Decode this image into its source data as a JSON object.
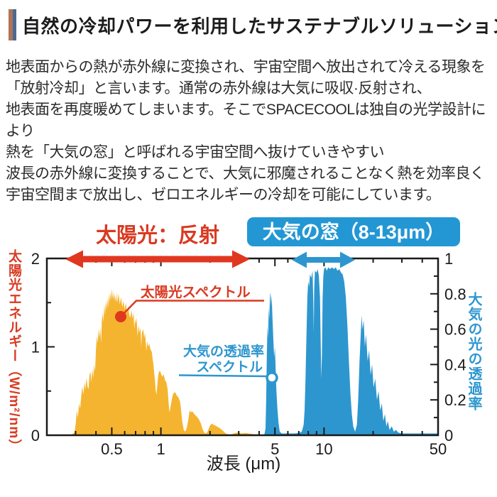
{
  "header": {
    "title": "自然の冷却パワーを利用したサステナブルソリューション",
    "accent_bar_colors": [
      "#b27257",
      "#4a6b94"
    ]
  },
  "body": {
    "lines": [
      "地表面からの熱が赤外線に変換され、宇宙空間へ放出されて冷える現象を",
      "「放射冷却」と言います。通常の赤外線は大気に吸収·反射され、",
      "地表面を再度暖めてしまいます。そこでSPACECOOLは独自の光学設計により",
      "熱を「大気の窓」と呼ばれる宇宙空間へ抜けていきやすい",
      "波長の赤外線に変換することで、大気に邪魔されることなく熱を効率良く",
      "宇宙空間まで放出し、ゼロエネルギーの冷却を可能にしています。"
    ]
  },
  "chart_data": {
    "type": "area",
    "x_scale": "log",
    "x_range": [
      0.2,
      50
    ],
    "xlabel": "波長 (μm)",
    "x_major_ticks": [
      0.5,
      1,
      5,
      10,
      50
    ],
    "x_major_labels": [
      "0.5",
      "1",
      "5",
      "10",
      "50"
    ],
    "x_minor_ticks": [
      0.3,
      0.4,
      0.6,
      0.7,
      0.8,
      0.9,
      2,
      3,
      4,
      6,
      7,
      8,
      9,
      20,
      30,
      40
    ],
    "left_axis": {
      "label": "太陽光エネルギー（W/m²/nm）",
      "color": "#d93a22",
      "min": 0,
      "max": 2,
      "major_ticks": [
        0,
        1,
        2
      ],
      "labels": [
        "0",
        "1",
        "2"
      ],
      "minor_ticks": [
        0.5,
        1.5
      ]
    },
    "right_axis": {
      "label": "大気の光の透過率",
      "color": "#2d96cf",
      "min": 0,
      "max": 1,
      "major_ticks": [
        0,
        0.2,
        0.4,
        0.6,
        0.8,
        1
      ],
      "labels": [
        "0",
        "0.2",
        "0.4",
        "0.6",
        "0.8",
        "1"
      ],
      "minor_ticks": [
        0.1,
        0.3,
        0.5,
        0.7,
        0.9
      ]
    },
    "colors": {
      "red": "#d93a22",
      "arrow_red": "#e0371f",
      "orange": "#f5b42f",
      "blue": "#2d96cf",
      "badge_bg": "#2397d3",
      "axis_black": "#1a1a1a"
    },
    "header_annotations": {
      "sun_reflect_label": "太陽光：反射",
      "window_badge": "大気の窓（8-13μm）",
      "badge_text_color": "#ffffff",
      "window_range_um": [
        8,
        13
      ]
    },
    "series": [
      {
        "name": "太陽光スペクトル",
        "axis": "left",
        "color": "#f5b42f",
        "points": [
          [
            0.28,
            0
          ],
          [
            0.295,
            0.03
          ],
          [
            0.3,
            0.12
          ],
          [
            0.305,
            0.28
          ],
          [
            0.31,
            0.2
          ],
          [
            0.315,
            0.36
          ],
          [
            0.32,
            0.3
          ],
          [
            0.325,
            0.45
          ],
          [
            0.33,
            0.55
          ],
          [
            0.335,
            0.46
          ],
          [
            0.34,
            0.6
          ],
          [
            0.345,
            0.52
          ],
          [
            0.35,
            0.65
          ],
          [
            0.355,
            0.55
          ],
          [
            0.36,
            0.52
          ],
          [
            0.365,
            0.68
          ],
          [
            0.37,
            0.72
          ],
          [
            0.375,
            0.6
          ],
          [
            0.38,
            0.75
          ],
          [
            0.385,
            0.65
          ],
          [
            0.39,
            0.8
          ],
          [
            0.395,
            0.72
          ],
          [
            0.4,
            0.98
          ],
          [
            0.405,
            1.12
          ],
          [
            0.41,
            1.04
          ],
          [
            0.415,
            1.2
          ],
          [
            0.42,
            1.1
          ],
          [
            0.425,
            1.22
          ],
          [
            0.43,
            1.04
          ],
          [
            0.435,
            1.3
          ],
          [
            0.44,
            1.38
          ],
          [
            0.445,
            1.28
          ],
          [
            0.45,
            1.48
          ],
          [
            0.455,
            1.36
          ],
          [
            0.46,
            1.52
          ],
          [
            0.465,
            1.42
          ],
          [
            0.47,
            1.55
          ],
          [
            0.475,
            1.44
          ],
          [
            0.48,
            1.6
          ],
          [
            0.485,
            1.5
          ],
          [
            0.49,
            1.62
          ],
          [
            0.495,
            1.53
          ],
          [
            0.5,
            1.66
          ],
          [
            0.505,
            1.54
          ],
          [
            0.51,
            1.63
          ],
          [
            0.515,
            1.52
          ],
          [
            0.52,
            1.6
          ],
          [
            0.53,
            1.5
          ],
          [
            0.535,
            1.62
          ],
          [
            0.54,
            1.5
          ],
          [
            0.55,
            1.6
          ],
          [
            0.56,
            1.48
          ],
          [
            0.57,
            1.56
          ],
          [
            0.58,
            1.45
          ],
          [
            0.59,
            1.52
          ],
          [
            0.6,
            1.42
          ],
          [
            0.61,
            1.5
          ],
          [
            0.62,
            1.38
          ],
          [
            0.63,
            1.46
          ],
          [
            0.64,
            1.36
          ],
          [
            0.65,
            1.33
          ],
          [
            0.66,
            1.42
          ],
          [
            0.67,
            1.32
          ],
          [
            0.68,
            1.39
          ],
          [
            0.687,
            1.2
          ],
          [
            0.695,
            1.32
          ],
          [
            0.7,
            1.26
          ],
          [
            0.71,
            1.33
          ],
          [
            0.715,
            1.22
          ],
          [
            0.72,
            1.12
          ],
          [
            0.73,
            1.24
          ],
          [
            0.74,
            1.16
          ],
          [
            0.75,
            1.22
          ],
          [
            0.758,
            1.0
          ],
          [
            0.765,
            1.16
          ],
          [
            0.78,
            1.2
          ],
          [
            0.79,
            1.1
          ],
          [
            0.8,
            1.16
          ],
          [
            0.81,
            1.02
          ],
          [
            0.815,
            0.95
          ],
          [
            0.825,
            1.06
          ],
          [
            0.84,
            1.0
          ],
          [
            0.85,
            1.04
          ],
          [
            0.86,
            0.98
          ],
          [
            0.88,
            0.94
          ],
          [
            0.89,
            0.86
          ],
          [
            0.9,
            0.8
          ],
          [
            0.91,
            0.7
          ],
          [
            0.92,
            0.62
          ],
          [
            0.93,
            0.5
          ],
          [
            0.94,
            0.46
          ],
          [
            0.95,
            0.56
          ],
          [
            0.96,
            0.65
          ],
          [
            0.97,
            0.71
          ],
          [
            0.985,
            0.73
          ],
          [
            1.0,
            0.7
          ],
          [
            1.02,
            0.66
          ],
          [
            1.04,
            0.69
          ],
          [
            1.06,
            0.62
          ],
          [
            1.08,
            0.6
          ],
          [
            1.1,
            0.52
          ],
          [
            1.11,
            0.42
          ],
          [
            1.12,
            0.32
          ],
          [
            1.13,
            0.26
          ],
          [
            1.15,
            0.34
          ],
          [
            1.17,
            0.42
          ],
          [
            1.19,
            0.47
          ],
          [
            1.22,
            0.49
          ],
          [
            1.25,
            0.45
          ],
          [
            1.28,
            0.43
          ],
          [
            1.31,
            0.38
          ],
          [
            1.33,
            0.28
          ],
          [
            1.35,
            0.16
          ],
          [
            1.38,
            0.06
          ],
          [
            1.41,
            0.04
          ],
          [
            1.44,
            0.08
          ],
          [
            1.47,
            0.17
          ],
          [
            1.5,
            0.28
          ],
          [
            1.53,
            0.26
          ],
          [
            1.56,
            0.27
          ],
          [
            1.6,
            0.24
          ],
          [
            1.64,
            0.22
          ],
          [
            1.68,
            0.2
          ],
          [
            1.72,
            0.17
          ],
          [
            1.76,
            0.13
          ],
          [
            1.8,
            0.07
          ],
          [
            1.84,
            0.03
          ],
          [
            1.88,
            0.02
          ],
          [
            1.92,
            0.03
          ],
          [
            1.96,
            0.07
          ],
          [
            2.0,
            0.11
          ],
          [
            2.05,
            0.13
          ],
          [
            2.1,
            0.12
          ],
          [
            2.2,
            0.1
          ],
          [
            2.3,
            0.08
          ],
          [
            2.4,
            0.05
          ],
          [
            2.5,
            0.02
          ],
          [
            2.6,
            0.01
          ],
          [
            2.7,
            0.01
          ],
          [
            2.85,
            0.025
          ],
          [
            3.0,
            0.03
          ],
          [
            3.1,
            0.02
          ],
          [
            3.3,
            0.025
          ],
          [
            3.5,
            0.018
          ],
          [
            3.7,
            0.012
          ],
          [
            4.0,
            0.01
          ],
          [
            4.3,
            0.008
          ],
          [
            4.7,
            0.005
          ],
          [
            5.0,
            0.0
          ]
        ]
      },
      {
        "name": "大気の透過率スペクトル",
        "axis": "right",
        "color": "#2d96cf",
        "points": [
          [
            4.3,
            0
          ],
          [
            4.38,
            0.04
          ],
          [
            4.42,
            0.2
          ],
          [
            4.46,
            0.45
          ],
          [
            4.5,
            0.62
          ],
          [
            4.54,
            0.55
          ],
          [
            4.58,
            0.72
          ],
          [
            4.62,
            0.66
          ],
          [
            4.66,
            0.78
          ],
          [
            4.7,
            0.81
          ],
          [
            4.74,
            0.73
          ],
          [
            4.78,
            0.79
          ],
          [
            4.82,
            0.68
          ],
          [
            4.86,
            0.6
          ],
          [
            4.9,
            0.52
          ],
          [
            4.95,
            0.44
          ],
          [
            5.0,
            0.5
          ],
          [
            5.05,
            0.38
          ],
          [
            5.1,
            0.26
          ],
          [
            5.18,
            0.15
          ],
          [
            5.26,
            0.07
          ],
          [
            5.35,
            0.02
          ],
          [
            5.5,
            0.01
          ],
          [
            6.0,
            0.01
          ],
          [
            6.5,
            0.01
          ],
          [
            7.0,
            0.012
          ],
          [
            7.3,
            0.02
          ],
          [
            7.5,
            0.06
          ],
          [
            7.6,
            0.14
          ],
          [
            7.7,
            0.32
          ],
          [
            7.8,
            0.56
          ],
          [
            7.9,
            0.78
          ],
          [
            8.0,
            0.87
          ],
          [
            8.1,
            0.84
          ],
          [
            8.2,
            0.91
          ],
          [
            8.35,
            0.89
          ],
          [
            8.5,
            0.93
          ],
          [
            8.6,
            0.75
          ],
          [
            8.65,
            0.58
          ],
          [
            8.7,
            0.82
          ],
          [
            8.8,
            0.93
          ],
          [
            9.0,
            0.92
          ],
          [
            9.15,
            0.94
          ],
          [
            9.3,
            0.9
          ],
          [
            9.45,
            0.78
          ],
          [
            9.55,
            0.5
          ],
          [
            9.62,
            0.32
          ],
          [
            9.7,
            0.45
          ],
          [
            9.8,
            0.78
          ],
          [
            9.9,
            0.9
          ],
          [
            10.0,
            0.94
          ],
          [
            10.2,
            0.95
          ],
          [
            10.4,
            0.93
          ],
          [
            10.6,
            0.95
          ],
          [
            10.9,
            0.94
          ],
          [
            11.2,
            0.95
          ],
          [
            11.5,
            0.94
          ],
          [
            11.8,
            0.95
          ],
          [
            12.1,
            0.93
          ],
          [
            12.4,
            0.94
          ],
          [
            12.7,
            0.92
          ],
          [
            13.0,
            0.91
          ],
          [
            13.3,
            0.87
          ],
          [
            13.6,
            0.78
          ],
          [
            13.9,
            0.62
          ],
          [
            14.2,
            0.42
          ],
          [
            14.5,
            0.24
          ],
          [
            14.8,
            0.12
          ],
          [
            15.1,
            0.05
          ],
          [
            15.5,
            0.02
          ],
          [
            15.9,
            0.06
          ],
          [
            16.2,
            0.2
          ],
          [
            16.5,
            0.42
          ],
          [
            16.8,
            0.58
          ],
          [
            17.0,
            0.68
          ],
          [
            17.2,
            0.6
          ],
          [
            17.5,
            0.65
          ],
          [
            17.8,
            0.5
          ],
          [
            18.1,
            0.57
          ],
          [
            18.5,
            0.42
          ],
          [
            18.9,
            0.48
          ],
          [
            19.3,
            0.34
          ],
          [
            19.7,
            0.4
          ],
          [
            20.1,
            0.27
          ],
          [
            20.6,
            0.32
          ],
          [
            21.1,
            0.2
          ],
          [
            21.6,
            0.25
          ],
          [
            22.1,
            0.14
          ],
          [
            22.6,
            0.18
          ],
          [
            23.1,
            0.08
          ],
          [
            23.6,
            0.12
          ],
          [
            24.1,
            0.05
          ],
          [
            24.6,
            0.08
          ],
          [
            25.2,
            0.03
          ],
          [
            26.0,
            0.05
          ],
          [
            26.8,
            0.02
          ],
          [
            27.6,
            0.03
          ],
          [
            28.5,
            0.015
          ],
          [
            30.0,
            0.01
          ],
          [
            35.0,
            0.01
          ],
          [
            42.0,
            0.01
          ],
          [
            50.0,
            0.01
          ]
        ]
      }
    ],
    "annotations": {
      "solar_label": {
        "text": "太陽光スペクトル",
        "color": "#d93a22"
      },
      "transmittance_label_line1": "大気の透過率",
      "transmittance_label_line2": "スペクトル",
      "transmittance_label_color": "#2d96cf"
    }
  }
}
